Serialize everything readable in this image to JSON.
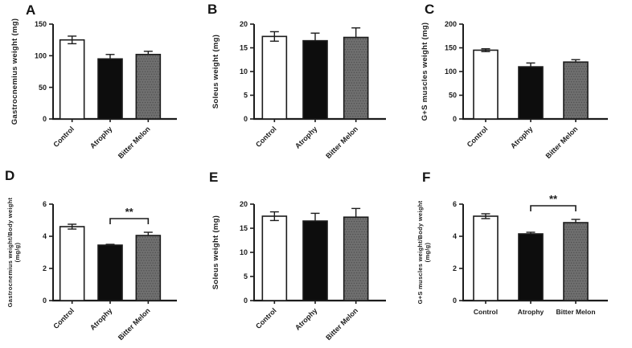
{
  "figure": {
    "background": "#ffffff",
    "colors": {
      "axis": "#1c1c1c",
      "bar_white": "#ffffff",
      "bar_black": "#0d0d0d",
      "bar_gray": "#6f6f6f",
      "stipple": "rgba(20,20,20,0.35)"
    }
  },
  "chart_data": [
    {
      "type": "bar",
      "panel": "A",
      "ylabel_lines": [
        "Gastrocnemius weight (mg)"
      ],
      "categories": [
        "Control",
        "Atrophy",
        "Bitter Melon"
      ],
      "values": [
        125,
        95,
        102
      ],
      "errors": [
        6,
        7,
        5
      ],
      "ylim": [
        0,
        150
      ],
      "yticks": [
        0,
        50,
        100,
        150
      ],
      "bar_fills": [
        "white",
        "black",
        "gray"
      ],
      "xlabels_rotated": true,
      "grid": "off",
      "legend": "none",
      "significance": null
    },
    {
      "type": "bar",
      "panel": "B",
      "ylabel_lines": [
        "Soleus weight (mg)"
      ],
      "categories": [
        "Control",
        "Atrophy",
        "Bitter Melon"
      ],
      "values": [
        17.4,
        16.5,
        17.2
      ],
      "errors": [
        1.0,
        1.6,
        2.0
      ],
      "ylim": [
        0,
        20
      ],
      "yticks": [
        0,
        5,
        10,
        15,
        20
      ],
      "bar_fills": [
        "white",
        "black",
        "gray"
      ],
      "xlabels_rotated": true,
      "grid": "off",
      "legend": "none",
      "significance": null
    },
    {
      "type": "bar",
      "panel": "C",
      "ylabel_lines": [
        "G+S muscles weight (mg)"
      ],
      "categories": [
        "Control",
        "Atrophy",
        "Bitter Melon"
      ],
      "values": [
        145,
        110,
        120
      ],
      "errors": [
        3,
        8,
        5
      ],
      "ylim": [
        0,
        200
      ],
      "yticks": [
        0,
        50,
        100,
        150,
        200
      ],
      "bar_fills": [
        "white",
        "black",
        "gray"
      ],
      "xlabels_rotated": true,
      "grid": "off",
      "legend": "none",
      "significance": null
    },
    {
      "type": "bar",
      "panel": "D",
      "ylabel_lines": [
        "Gastrocnemius weight/Body weight",
        "(mg/g)"
      ],
      "categories": [
        "Control",
        "Atrophy",
        "Bitter Melon"
      ],
      "values": [
        4.6,
        3.45,
        4.05
      ],
      "errors": [
        0.15,
        0.05,
        0.2
      ],
      "ylim": [
        0,
        6
      ],
      "yticks": [
        0,
        2,
        4,
        6
      ],
      "bar_fills": [
        "white",
        "black",
        "gray"
      ],
      "xlabels_rotated": true,
      "grid": "off",
      "legend": "none",
      "significance": {
        "from": 1,
        "to": 2,
        "label": "**",
        "y": 5.1
      }
    },
    {
      "type": "bar",
      "panel": "E",
      "ylabel_lines": [
        "Soleus weight (mg)"
      ],
      "categories": [
        "Control",
        "Atrophy",
        "Bitter Melon"
      ],
      "values": [
        17.5,
        16.5,
        17.3
      ],
      "errors": [
        0.9,
        1.6,
        1.8
      ],
      "ylim": [
        0,
        20
      ],
      "yticks": [
        0,
        5,
        10,
        15,
        20
      ],
      "bar_fills": [
        "white",
        "black",
        "gray"
      ],
      "xlabels_rotated": true,
      "grid": "off",
      "legend": "none",
      "significance": null
    },
    {
      "type": "bar",
      "panel": "F",
      "ylabel_lines": [
        "G+S muscles weight/Body weight",
        "(mg/g)"
      ],
      "categories": [
        "Control",
        "Atrophy",
        "Bitter Melon"
      ],
      "values": [
        5.25,
        4.15,
        4.85
      ],
      "errors": [
        0.15,
        0.1,
        0.2
      ],
      "ylim": [
        0,
        6
      ],
      "yticks": [
        0,
        2,
        4,
        6
      ],
      "bar_fills": [
        "white",
        "black",
        "gray"
      ],
      "xlabels_rotated": false,
      "grid": "off",
      "legend": "none",
      "significance": {
        "from": 1,
        "to": 2,
        "label": "**",
        "y": 5.9
      }
    }
  ]
}
